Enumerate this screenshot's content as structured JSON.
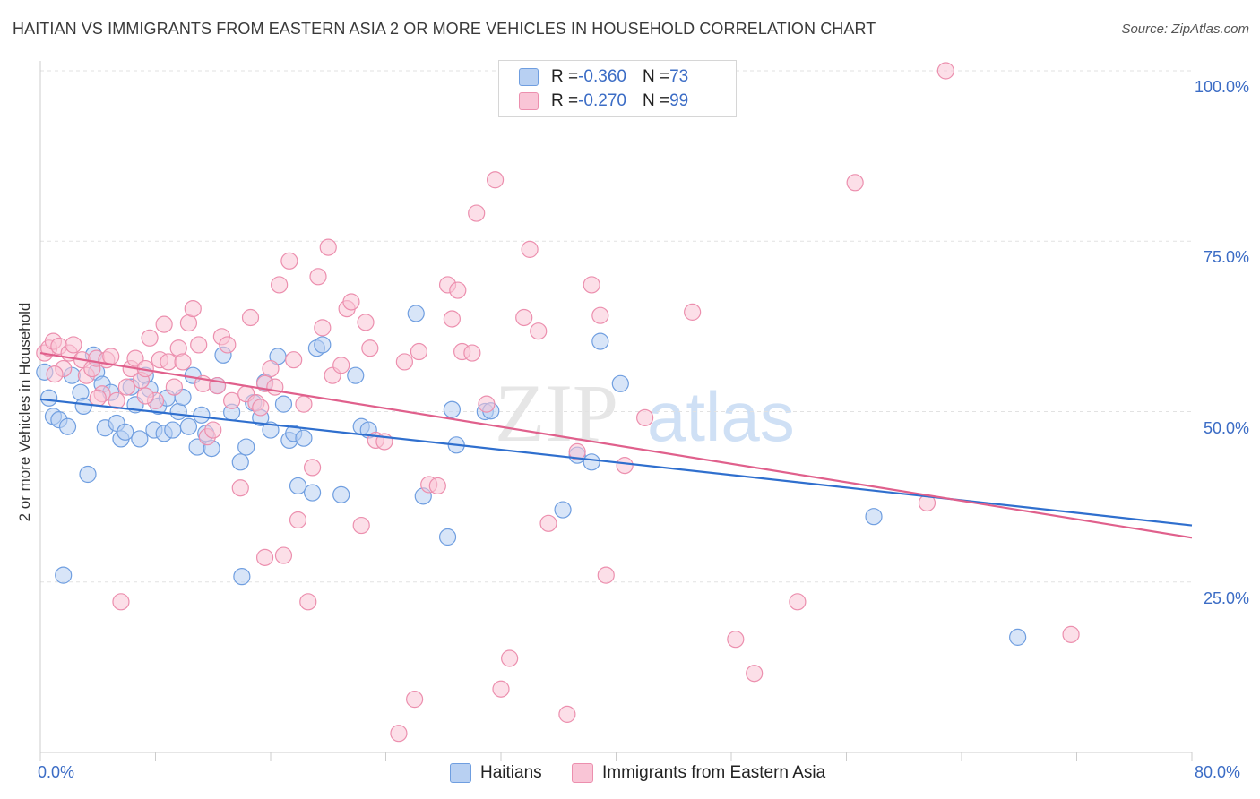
{
  "title": "HAITIAN VS IMMIGRANTS FROM EASTERN ASIA 2 OR MORE VEHICLES IN HOUSEHOLD CORRELATION CHART",
  "source": "Source: ZipAtlas.com",
  "watermark": {
    "zip": "ZIP",
    "atlas": "atlas"
  },
  "legend": {
    "r_label": "R = ",
    "n_label": "N = ",
    "series": [
      {
        "r": "-0.360",
        "n": "73",
        "fill": "#b8d0f2",
        "stroke": "#6f9ee0"
      },
      {
        "r": "-0.270",
        "n": "99",
        "fill": "#f9c5d6",
        "stroke": "#ec8fae"
      }
    ]
  },
  "chart_data": {
    "type": "scatter",
    "title": "HAITIAN VS IMMIGRANTS FROM EASTERN ASIA 2 OR MORE VEHICLES IN HOUSEHOLD CORRELATION CHART",
    "xlabel": "",
    "ylabel": "2 or more Vehicles in Household",
    "xlim": [
      0,
      80
    ],
    "ylim": [
      0,
      100
    ],
    "x_tick_labels": [
      "0.0%",
      "80.0%"
    ],
    "y_ticks": [
      25,
      50,
      75,
      100
    ],
    "y_tick_labels": [
      "25.0%",
      "50.0%",
      "75.0%",
      "100.0%"
    ],
    "grid": "horizontal dashed",
    "legend_position": "bottom-center",
    "series": [
      {
        "name": "Haitians",
        "color": "#6f9ee0",
        "fill": "#b8d0f2",
        "trend": {
          "x": [
            0,
            80
          ],
          "y": [
            51.8,
            33.3
          ],
          "color": "#2f6fce"
        },
        "points": [
          [
            0.3,
            55.8
          ],
          [
            0.6,
            52.0
          ],
          [
            0.9,
            49.3
          ],
          [
            1.3,
            48.8
          ],
          [
            1.9,
            47.8
          ],
          [
            2.2,
            55.3
          ],
          [
            2.8,
            52.8
          ],
          [
            3.0,
            50.8
          ],
          [
            3.3,
            40.8
          ],
          [
            3.7,
            58.3
          ],
          [
            3.9,
            55.8
          ],
          [
            4.3,
            54.0
          ],
          [
            4.5,
            47.6
          ],
          [
            4.9,
            52.8
          ],
          [
            5.3,
            48.3
          ],
          [
            5.6,
            46.0
          ],
          [
            5.9,
            47.0
          ],
          [
            6.3,
            53.6
          ],
          [
            6.6,
            51.0
          ],
          [
            6.9,
            46.0
          ],
          [
            7.3,
            55.3
          ],
          [
            7.6,
            53.3
          ],
          [
            7.9,
            47.3
          ],
          [
            8.2,
            50.8
          ],
          [
            8.6,
            46.8
          ],
          [
            8.8,
            52.0
          ],
          [
            9.2,
            47.3
          ],
          [
            9.6,
            50.0
          ],
          [
            9.9,
            52.1
          ],
          [
            10.3,
            47.8
          ],
          [
            10.6,
            55.3
          ],
          [
            10.9,
            44.8
          ],
          [
            11.2,
            49.5
          ],
          [
            11.5,
            46.8
          ],
          [
            11.9,
            44.6
          ],
          [
            12.3,
            53.8
          ],
          [
            12.7,
            58.3
          ],
          [
            13.3,
            49.9
          ],
          [
            13.9,
            42.6
          ],
          [
            14.3,
            44.8
          ],
          [
            14.8,
            51.3
          ],
          [
            15.3,
            49.1
          ],
          [
            15.6,
            54.3
          ],
          [
            16.0,
            47.3
          ],
          [
            16.5,
            58.1
          ],
          [
            16.9,
            51.1
          ],
          [
            17.3,
            45.8
          ],
          [
            17.6,
            46.8
          ],
          [
            17.9,
            39.1
          ],
          [
            18.3,
            46.1
          ],
          [
            18.9,
            38.1
          ],
          [
            19.2,
            59.3
          ],
          [
            19.6,
            59.8
          ],
          [
            20.9,
            37.8
          ],
          [
            21.9,
            55.3
          ],
          [
            22.3,
            47.8
          ],
          [
            22.8,
            47.3
          ],
          [
            26.1,
            64.4
          ],
          [
            26.6,
            37.6
          ],
          [
            28.3,
            31.6
          ],
          [
            28.6,
            50.3
          ],
          [
            28.9,
            45.1
          ],
          [
            30.9,
            50.0
          ],
          [
            31.3,
            50.1
          ],
          [
            36.3,
            35.6
          ],
          [
            37.3,
            43.6
          ],
          [
            38.3,
            42.6
          ],
          [
            38.9,
            60.3
          ],
          [
            40.3,
            54.1
          ],
          [
            57.9,
            34.6
          ],
          [
            67.9,
            16.9
          ],
          [
            1.6,
            26.0
          ],
          [
            14.0,
            25.8
          ]
        ]
      },
      {
        "name": "Immigrants from Eastern Asia",
        "color": "#ec8fae",
        "fill": "#f9c5d6",
        "trend": {
          "x": [
            0,
            80
          ],
          "y": [
            58.6,
            31.5
          ],
          "color": "#e0608c"
        },
        "points": [
          [
            0.3,
            58.6
          ],
          [
            0.6,
            59.3
          ],
          [
            0.9,
            60.3
          ],
          [
            1.3,
            59.6
          ],
          [
            1.6,
            56.3
          ],
          [
            2.0,
            58.6
          ],
          [
            2.3,
            59.8
          ],
          [
            2.9,
            57.6
          ],
          [
            3.2,
            55.3
          ],
          [
            3.6,
            56.3
          ],
          [
            3.9,
            57.8
          ],
          [
            4.3,
            52.6
          ],
          [
            4.6,
            57.6
          ],
          [
            4.9,
            58.1
          ],
          [
            5.3,
            51.6
          ],
          [
            5.6,
            22.1
          ],
          [
            6.0,
            53.6
          ],
          [
            6.3,
            56.3
          ],
          [
            6.6,
            57.8
          ],
          [
            7.0,
            54.6
          ],
          [
            7.3,
            56.3
          ],
          [
            7.6,
            60.8
          ],
          [
            8.0,
            51.6
          ],
          [
            8.3,
            57.6
          ],
          [
            8.6,
            62.8
          ],
          [
            8.9,
            57.3
          ],
          [
            9.3,
            53.6
          ],
          [
            9.6,
            59.3
          ],
          [
            9.9,
            57.3
          ],
          [
            10.3,
            63.0
          ],
          [
            10.6,
            65.1
          ],
          [
            11.0,
            59.8
          ],
          [
            11.3,
            54.1
          ],
          [
            11.6,
            46.3
          ],
          [
            12.0,
            47.3
          ],
          [
            12.3,
            53.8
          ],
          [
            12.6,
            61.0
          ],
          [
            13.0,
            59.8
          ],
          [
            13.3,
            51.6
          ],
          [
            13.9,
            38.8
          ],
          [
            14.3,
            52.6
          ],
          [
            14.6,
            63.8
          ],
          [
            15.0,
            51.3
          ],
          [
            15.3,
            50.6
          ],
          [
            15.6,
            54.1
          ],
          [
            16.0,
            56.3
          ],
          [
            16.3,
            53.6
          ],
          [
            16.6,
            68.6
          ],
          [
            16.9,
            28.9
          ],
          [
            17.3,
            72.1
          ],
          [
            17.6,
            57.6
          ],
          [
            17.9,
            34.1
          ],
          [
            18.3,
            51.1
          ],
          [
            18.6,
            22.1
          ],
          [
            18.9,
            41.8
          ],
          [
            19.3,
            69.8
          ],
          [
            19.6,
            62.3
          ],
          [
            20.0,
            74.1
          ],
          [
            20.3,
            55.3
          ],
          [
            20.9,
            56.8
          ],
          [
            21.3,
            65.1
          ],
          [
            21.6,
            66.1
          ],
          [
            22.3,
            33.3
          ],
          [
            22.6,
            63.1
          ],
          [
            22.9,
            59.3
          ],
          [
            23.3,
            45.8
          ],
          [
            23.9,
            45.6
          ],
          [
            24.9,
            2.8
          ],
          [
            25.3,
            57.3
          ],
          [
            26.0,
            7.8
          ],
          [
            26.3,
            58.8
          ],
          [
            27.0,
            39.3
          ],
          [
            27.6,
            39.1
          ],
          [
            28.3,
            68.6
          ],
          [
            28.6,
            63.6
          ],
          [
            29.0,
            67.8
          ],
          [
            29.3,
            58.8
          ],
          [
            30.0,
            58.6
          ],
          [
            30.3,
            79.1
          ],
          [
            31.0,
            51.1
          ],
          [
            31.6,
            84.0
          ],
          [
            32.0,
            9.3
          ],
          [
            32.6,
            13.8
          ],
          [
            33.6,
            63.8
          ],
          [
            34.0,
            73.8
          ],
          [
            34.6,
            61.8
          ],
          [
            35.3,
            33.6
          ],
          [
            36.6,
            5.6
          ],
          [
            37.3,
            44.1
          ],
          [
            38.3,
            68.6
          ],
          [
            38.9,
            64.1
          ],
          [
            39.3,
            26.0
          ],
          [
            40.6,
            42.1
          ],
          [
            42.0,
            49.1
          ],
          [
            45.3,
            64.6
          ],
          [
            48.3,
            16.6
          ],
          [
            49.6,
            11.6
          ],
          [
            52.6,
            22.1
          ],
          [
            56.6,
            83.6
          ]
        ],
        "additional_points": [
          [
            61.6,
            36.6
          ],
          [
            71.6,
            17.3
          ],
          [
            62.9,
            100.0
          ],
          [
            15.6,
            28.6
          ],
          [
            7.3,
            52.3
          ],
          [
            4.0,
            52.0
          ],
          [
            1.0,
            55.5
          ]
        ]
      }
    ]
  }
}
